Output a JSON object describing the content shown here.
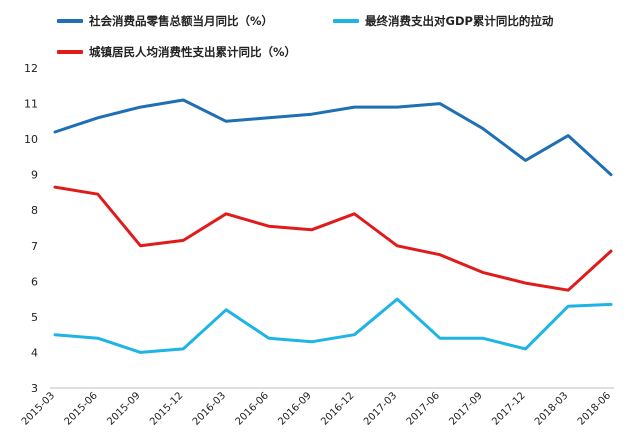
{
  "chart_data": {
    "type": "line",
    "categories": [
      "2015-03",
      "2015-06",
      "2015-09",
      "2015-12",
      "2016-03",
      "2016-06",
      "2016-09",
      "2016-12",
      "2017-03",
      "2017-06",
      "2017-09",
      "2017-12",
      "2018-03",
      "2018-06"
    ],
    "ylim": [
      3,
      12
    ],
    "yticks": [
      3,
      4,
      5,
      6,
      7,
      8,
      9,
      10,
      11,
      12
    ],
    "grid": false,
    "legend_position": "top",
    "series": [
      {
        "name": "社会消费品零售总额当月同比（%）",
        "color": "#1f6fb4",
        "values": [
          10.2,
          10.6,
          10.9,
          11.1,
          10.5,
          10.6,
          10.7,
          10.9,
          10.9,
          11.0,
          10.3,
          9.4,
          10.1,
          9.0
        ]
      },
      {
        "name": "最终消费支出对GDP累计同比的拉动",
        "color": "#1fb4e6",
        "values": [
          4.5,
          4.4,
          4.0,
          4.1,
          5.2,
          4.4,
          4.3,
          4.5,
          5.5,
          4.4,
          4.4,
          4.1,
          5.3,
          5.35
        ]
      },
      {
        "name": "城镇居民人均消费性支出累计同比（%）",
        "color": "#e01b1b",
        "values": [
          8.65,
          8.45,
          7.0,
          7.15,
          7.9,
          7.55,
          7.45,
          7.9,
          7.0,
          6.75,
          6.25,
          5.95,
          5.75,
          6.85
        ]
      }
    ]
  }
}
